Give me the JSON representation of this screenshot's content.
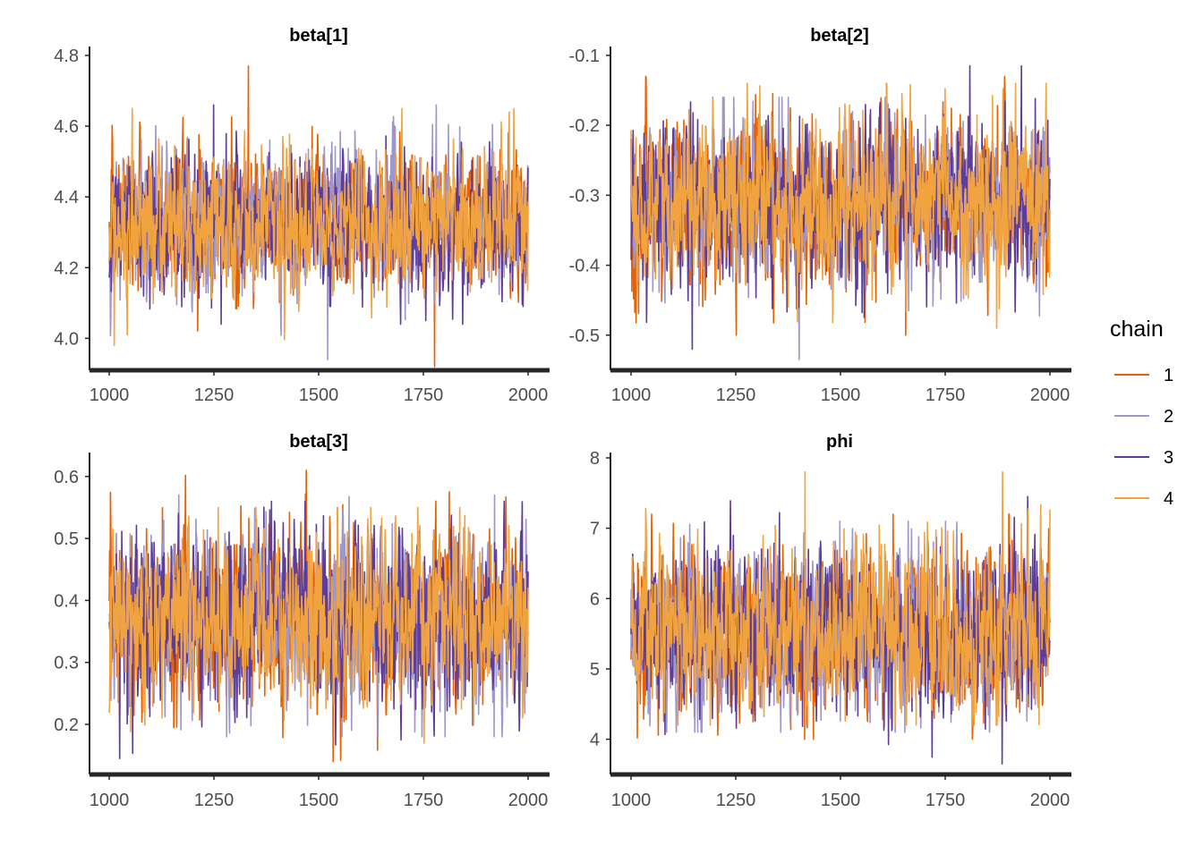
{
  "legend": {
    "title": "chain",
    "items": [
      {
        "label": "1",
        "color": "#e66101"
      },
      {
        "label": "2",
        "color": "#9e97cc"
      },
      {
        "label": "3",
        "color": "#5e3c99"
      },
      {
        "label": "4",
        "color": "#f1a340"
      }
    ]
  },
  "chart_data": [
    {
      "type": "line",
      "title": "beta[1]",
      "xlim": [
        1000,
        2000
      ],
      "ylim": [
        3.92,
        4.81
      ],
      "x_ticks": [
        1000,
        1250,
        1500,
        1750,
        2000
      ],
      "y_ticks": [
        4.0,
        4.2,
        4.4,
        4.6,
        4.8
      ],
      "y_tick_labels": [
        "4.0",
        "4.2",
        "4.4",
        "4.6",
        "4.8"
      ],
      "draws_per_chain": 1000,
      "series": [
        {
          "name": "1",
          "center": 4.33,
          "spread": 0.09,
          "range": [
            3.92,
            4.77
          ]
        },
        {
          "name": "2",
          "center": 4.32,
          "spread": 0.09,
          "range": [
            3.94,
            4.66
          ]
        },
        {
          "name": "3",
          "center": 4.32,
          "spread": 0.09,
          "range": [
            4.04,
            4.66
          ]
        },
        {
          "name": "4",
          "center": 4.33,
          "spread": 0.09,
          "range": [
            3.98,
            4.65
          ]
        }
      ]
    },
    {
      "type": "line",
      "title": "beta[2]",
      "xlim": [
        1000,
        2000
      ],
      "ylim": [
        -0.545,
        -0.095
      ],
      "x_ticks": [
        1000,
        1250,
        1500,
        1750,
        2000
      ],
      "y_ticks": [
        -0.5,
        -0.4,
        -0.3,
        -0.2,
        -0.1
      ],
      "y_tick_labels": [
        "-0.5",
        "-0.4",
        "-0.3",
        "-0.2",
        "-0.1"
      ],
      "draws_per_chain": 1000,
      "series": [
        {
          "name": "1",
          "center": -0.31,
          "spread": 0.055,
          "range": [
            -0.5,
            -0.13
          ]
        },
        {
          "name": "2",
          "center": -0.31,
          "spread": 0.055,
          "range": [
            -0.535,
            -0.16
          ]
        },
        {
          "name": "3",
          "center": -0.31,
          "spread": 0.055,
          "range": [
            -0.52,
            -0.115
          ]
        },
        {
          "name": "4",
          "center": -0.31,
          "spread": 0.055,
          "range": [
            -0.49,
            -0.14
          ]
        }
      ]
    },
    {
      "type": "line",
      "title": "beta[3]",
      "xlim": [
        1000,
        2000
      ],
      "ylim": [
        0.125,
        0.63
      ],
      "x_ticks": [
        1000,
        1250,
        1500,
        1750,
        2000
      ],
      "y_ticks": [
        0.2,
        0.3,
        0.4,
        0.5,
        0.6
      ],
      "y_tick_labels": [
        "0.2",
        "0.3",
        "0.4",
        "0.5",
        "0.6"
      ],
      "draws_per_chain": 1000,
      "series": [
        {
          "name": "1",
          "center": 0.37,
          "spread": 0.065,
          "range": [
            0.14,
            0.61
          ]
        },
        {
          "name": "2",
          "center": 0.37,
          "spread": 0.065,
          "range": [
            0.18,
            0.57
          ]
        },
        {
          "name": "3",
          "center": 0.37,
          "spread": 0.065,
          "range": [
            0.145,
            0.56
          ]
        },
        {
          "name": "4",
          "center": 0.37,
          "spread": 0.065,
          "range": [
            0.17,
            0.55
          ]
        }
      ]
    },
    {
      "type": "line",
      "title": "phi",
      "xlim": [
        1000,
        2000
      ],
      "ylim": [
        3.55,
        8.0
      ],
      "x_ticks": [
        1000,
        1250,
        1500,
        1750,
        2000
      ],
      "y_ticks": [
        4,
        5,
        6,
        7,
        8
      ],
      "y_tick_labels": [
        "4",
        "5",
        "6",
        "7",
        "8"
      ],
      "draws_per_chain": 1000,
      "series": [
        {
          "name": "1",
          "center": 5.55,
          "spread": 0.55,
          "range": [
            4.0,
            7.2
          ]
        },
        {
          "name": "2",
          "center": 5.55,
          "spread": 0.55,
          "range": [
            4.1,
            7.1
          ]
        },
        {
          "name": "3",
          "center": 5.55,
          "spread": 0.55,
          "range": [
            3.65,
            7.45
          ]
        },
        {
          "name": "4",
          "center": 5.55,
          "spread": 0.55,
          "range": [
            4.2,
            7.8
          ]
        }
      ]
    }
  ]
}
